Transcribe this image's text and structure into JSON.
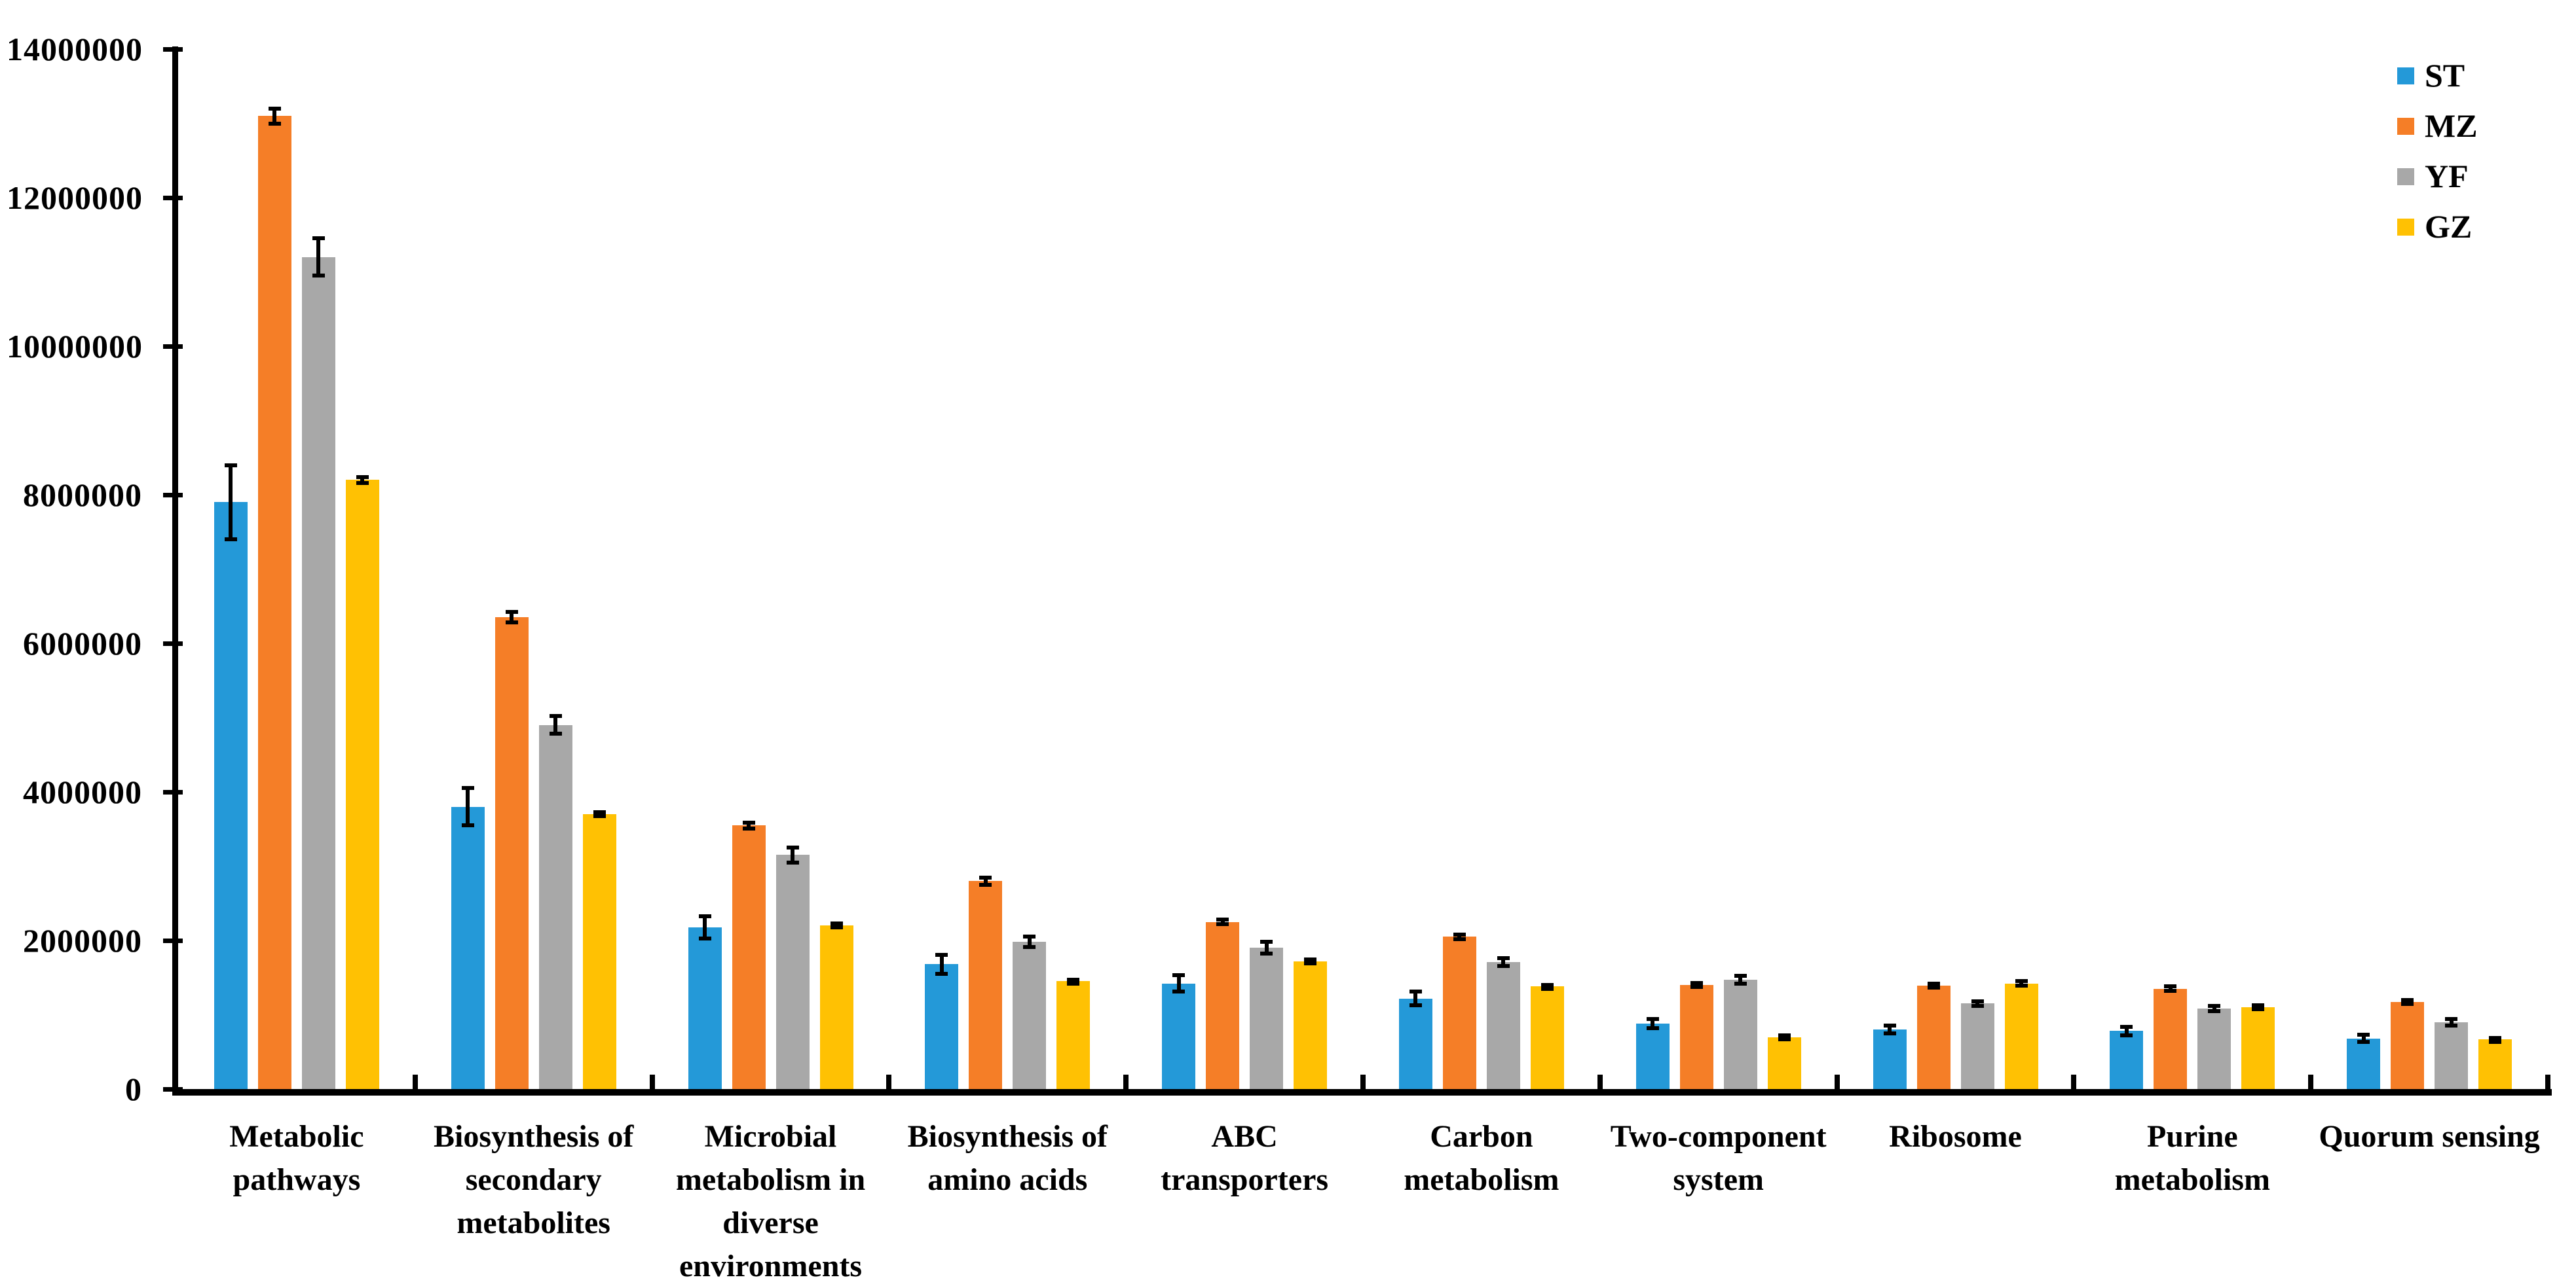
{
  "chart_data": {
    "type": "bar",
    "title": "",
    "xlabel": "",
    "ylabel": "",
    "grid": false,
    "legend_position": "top-right",
    "error_bars": true,
    "ylim": [
      0,
      14000000
    ],
    "y_tick_step": 2000000,
    "y_tick_labels": [
      "0",
      "2000000",
      "4000000",
      "6000000",
      "8000000",
      "10000000",
      "12000000",
      "14000000"
    ],
    "categories": [
      "Metabolic pathways",
      "Biosynthesis of secondary metabolites",
      "Microbial metabolism in diverse environments",
      "Biosynthesis of amino acids",
      "ABC transporters",
      "Carbon metabolism",
      "Two-component system",
      "Ribosome",
      "Purine metabolism",
      "Quorum sensing"
    ],
    "series": [
      {
        "name": "ST",
        "color": "#2499D8",
        "values": [
          7900000,
          3800000,
          2180000,
          1680000,
          1420000,
          1220000,
          880000,
          800000,
          780000,
          680000
        ],
        "errors": [
          500000,
          250000,
          150000,
          130000,
          110000,
          90000,
          60000,
          55000,
          60000,
          50000
        ]
      },
      {
        "name": "MZ",
        "color": "#F57E27",
        "values": [
          13100000,
          6350000,
          3550000,
          2800000,
          2250000,
          2050000,
          1400000,
          1390000,
          1350000,
          1170000
        ],
        "errors": [
          100000,
          70000,
          40000,
          50000,
          30000,
          30000,
          25000,
          25000,
          30000,
          25000
        ]
      },
      {
        "name": "YF",
        "color": "#A8A8A8",
        "values": [
          11200000,
          4900000,
          3150000,
          1980000,
          1900000,
          1710000,
          1470000,
          1150000,
          1080000,
          900000
        ],
        "errors": [
          250000,
          120000,
          100000,
          70000,
          80000,
          50000,
          50000,
          35000,
          35000,
          45000
        ]
      },
      {
        "name": "GZ",
        "color": "#FFC103",
        "values": [
          8200000,
          3700000,
          2200000,
          1450000,
          1720000,
          1380000,
          700000,
          1420000,
          1100000,
          670000
        ],
        "errors": [
          40000,
          30000,
          25000,
          25000,
          25000,
          20000,
          20000,
          30000,
          25000,
          20000
        ]
      }
    ]
  }
}
